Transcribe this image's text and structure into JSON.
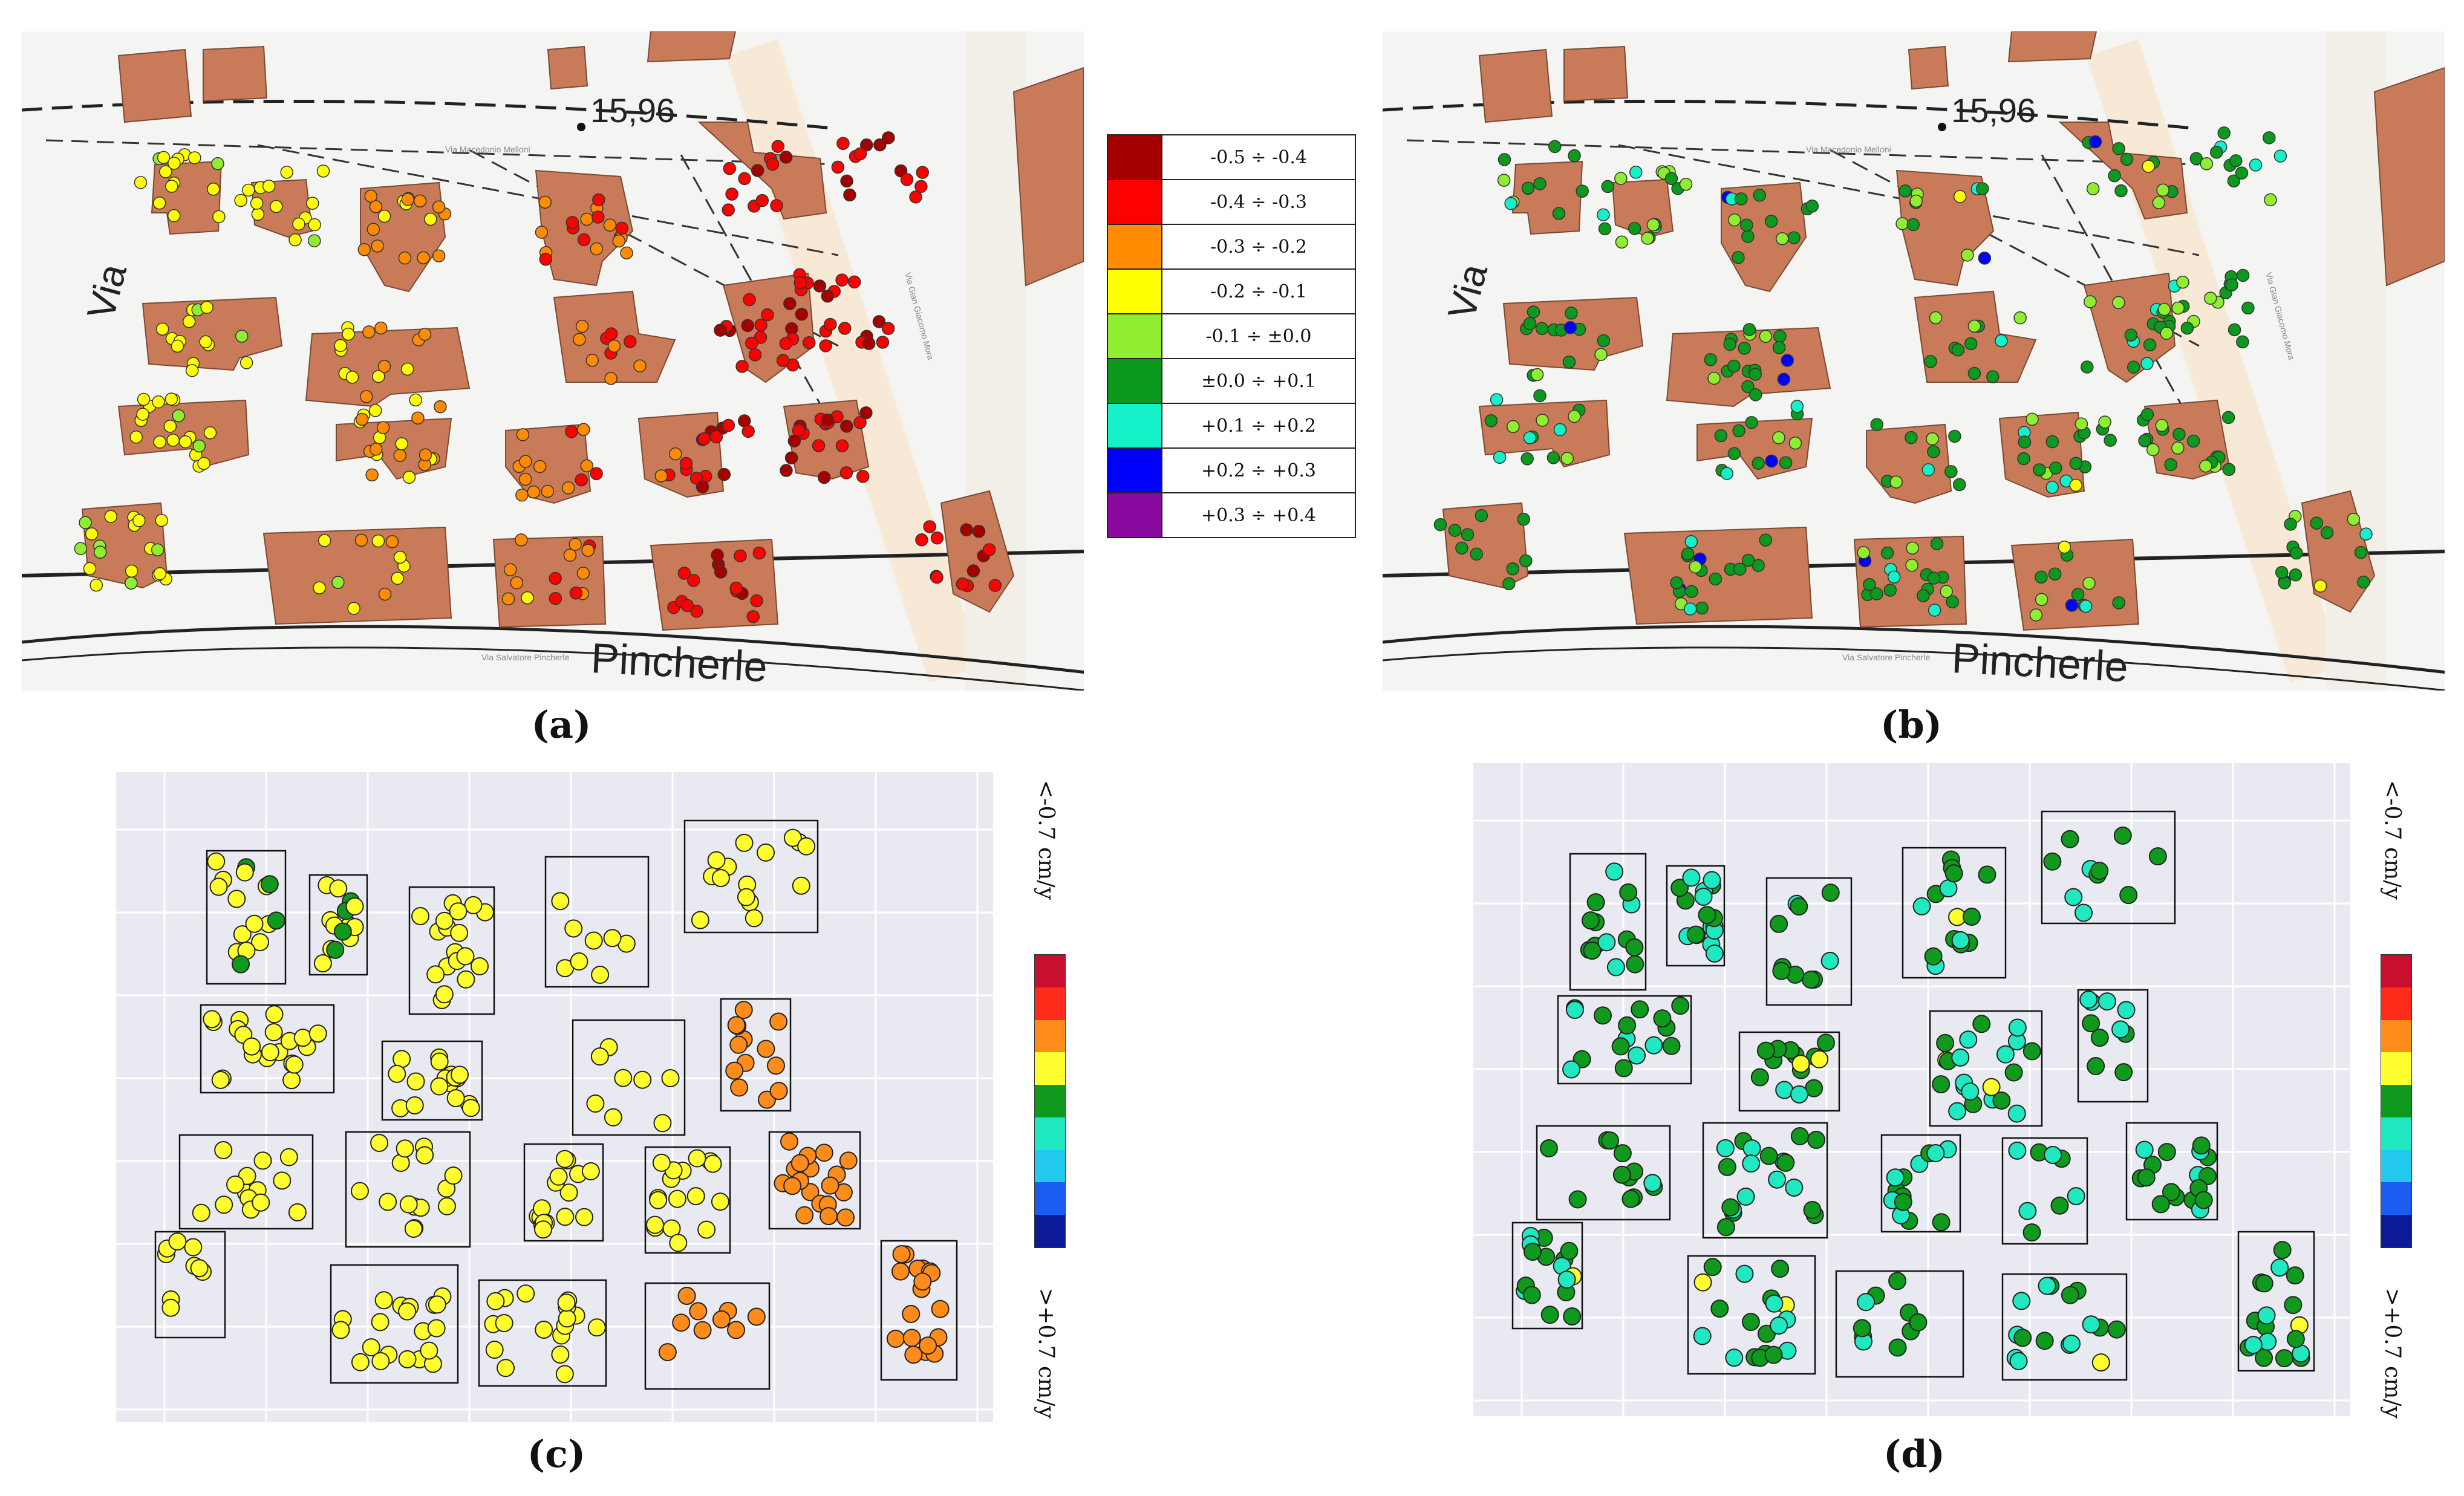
{
  "panels": {
    "a": {
      "caption": "(a)"
    },
    "b": {
      "caption": "(b)"
    },
    "c": {
      "caption": "(c)"
    },
    "d": {
      "caption": "(d)"
    }
  },
  "map_labels": {
    "elevation": "15,96",
    "street_via": "Via",
    "street_pincherle": "Pincherle",
    "small_via_salvatore": "Via Salvatore Pincherle",
    "small_via_macedonio": "Via Macedonio Melloni",
    "small_via_gian": "Via Gian Giacomo Mora"
  },
  "legend": {
    "entries": [
      {
        "label": "-0.5 ÷ -0.4",
        "color": "#a50000"
      },
      {
        "label": "-0.4 ÷ -0.3",
        "color": "#ff0000"
      },
      {
        "label": "-0.3 ÷ -0.2",
        "color": "#ff8c00"
      },
      {
        "label": "-0.2 ÷ -0.1",
        "color": "#ffff00"
      },
      {
        "label": "-0.1 ÷ ±0.0",
        "color": "#90ee30"
      },
      {
        "label": "±0.0 ÷ +0.1",
        "color": "#0b9a1e"
      },
      {
        "label": "+0.1 ÷ +0.2",
        "color": "#14f0c8"
      },
      {
        "label": "+0.2 ÷ +0.3",
        "color": "#0000ff"
      },
      {
        "label": "+0.3 ÷ +0.4",
        "color": "#8a0aa0"
      }
    ]
  },
  "colorbar": {
    "top_label": "<-0.7 cm/y",
    "bottom_label": ">+0.7 cm/y",
    "colors": [
      "#c8102e",
      "#ff2a1a",
      "#ff8c1a",
      "#ffff30",
      "#0f9a1e",
      "#20e8c0",
      "#22c8ee",
      "#1a5cf0",
      "#0c1a9a"
    ]
  },
  "colors": {
    "building": "#c97a58",
    "building_edge": "#7a4a35",
    "map_bg": "#f4f4f2",
    "plot_bg": "#e9eaf1"
  }
}
